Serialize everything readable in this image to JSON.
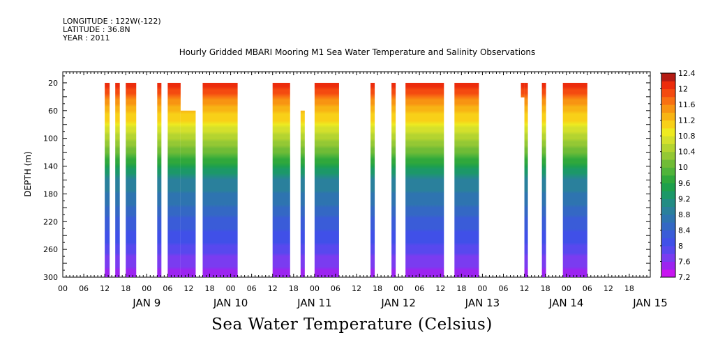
{
  "header": {
    "longitude": "LONGITUDE : 122W(-122)",
    "latitude": "LATITUDE : 36.8N",
    "year": "YEAR : 2011"
  },
  "chart_data": {
    "type": "heatmap",
    "title": "Hourly Gridded MBARI Mooring M1 Sea Water Temperature and Salinity Observations",
    "bottom_title": "Sea Water Temperature (Celsius)",
    "ylabel": "DEPTH (m)",
    "x_units": "hours since JAN 9 00:00",
    "xlim": [
      -18,
      150
    ],
    "ylim": [
      300,
      4
    ],
    "y_ticks": [
      20,
      60,
      100,
      140,
      180,
      220,
      260,
      300
    ],
    "hour_tick_labels": [
      "00",
      "06",
      "12",
      "18",
      "00",
      "06",
      "12",
      "18",
      "00",
      "06",
      "12",
      "18",
      "00",
      "06",
      "12",
      "18",
      "00",
      "06",
      "12",
      "18",
      "00",
      "06",
      "12",
      "18",
      "00",
      "06",
      "12",
      "18"
    ],
    "day_labels": [
      {
        "label": "JAN  9",
        "hour": 6
      },
      {
        "label": "JAN 10",
        "hour": 30
      },
      {
        "label": "JAN 11",
        "hour": 54
      },
      {
        "label": "JAN 12",
        "hour": 78
      },
      {
        "label": "JAN 13",
        "hour": 102
      },
      {
        "label": "JAN 14",
        "hour": 126
      },
      {
        "label": "JAN 15",
        "hour": 150
      }
    ],
    "colorbar": {
      "levels": [
        7.2,
        7.4,
        7.6,
        7.8,
        8,
        8.2,
        8.4,
        8.6,
        8.8,
        9,
        9.2,
        9.4,
        9.6,
        9.8,
        10,
        10.2,
        10.4,
        10.6,
        10.8,
        11,
        11.2,
        11.4,
        11.6,
        11.8,
        12,
        12.2,
        12.4
      ],
      "tick_labels": [
        "7.2",
        "7.6",
        "8",
        "8.4",
        "8.8",
        "9.2",
        "9.6",
        "10",
        "10.4",
        "10.8",
        "11.2",
        "11.6",
        "12",
        "12.4"
      ],
      "colors": [
        "#c814f0",
        "#9c24f0",
        "#7a3cf0",
        "#5848ee",
        "#4050e8",
        "#3a5cd8",
        "#3468c4",
        "#2e74b0",
        "#2a809c",
        "#228c84",
        "#1c9868",
        "#1ea04c",
        "#30a83c",
        "#50b43a",
        "#70bc36",
        "#94c834",
        "#b4d430",
        "#d4e02c",
        "#eeea20",
        "#f8d018",
        "#f8b414",
        "#f89412",
        "#f87012",
        "#f44a10",
        "#ec2c0c",
        "#b41c14"
      ]
    },
    "data_segments": [
      {
        "start": -6.0,
        "end": -4.6,
        "top": 20,
        "bottom": 300
      },
      {
        "start": -3.0,
        "end": -1.7,
        "top": 20,
        "bottom": 300
      },
      {
        "start": 0.0,
        "end": 3.0,
        "top": 20,
        "bottom": 300
      },
      {
        "start": 9.0,
        "end": 10.2,
        "top": 20,
        "bottom": 300
      },
      {
        "start": 12.0,
        "end": 15.7,
        "top": 20,
        "bottom": 300
      },
      {
        "start": 15.7,
        "end": 20.0,
        "top": 60,
        "bottom": 300
      },
      {
        "start": 22.0,
        "end": 32.0,
        "top": 20,
        "bottom": 300
      },
      {
        "start": 42.0,
        "end": 47.0,
        "top": 20,
        "bottom": 300
      },
      {
        "start": 50.0,
        "end": 51.2,
        "top": 60,
        "bottom": 300
      },
      {
        "start": 54.0,
        "end": 61.0,
        "top": 20,
        "bottom": 300
      },
      {
        "start": 70.0,
        "end": 71.2,
        "top": 20,
        "bottom": 300
      },
      {
        "start": 76.0,
        "end": 77.2,
        "top": 20,
        "bottom": 300
      },
      {
        "start": 80.0,
        "end": 91.0,
        "top": 20,
        "bottom": 300
      },
      {
        "start": 94.0,
        "end": 101.0,
        "top": 20,
        "bottom": 300
      },
      {
        "start": 113.0,
        "end": 114.0,
        "top": 20,
        "bottom": 41
      },
      {
        "start": 114.0,
        "end": 115.0,
        "top": 20,
        "bottom": 300
      },
      {
        "start": 119.0,
        "end": 120.2,
        "top": 20,
        "bottom": 300
      },
      {
        "start": 125.0,
        "end": 132.0,
        "top": 20,
        "bottom": 300
      }
    ]
  }
}
